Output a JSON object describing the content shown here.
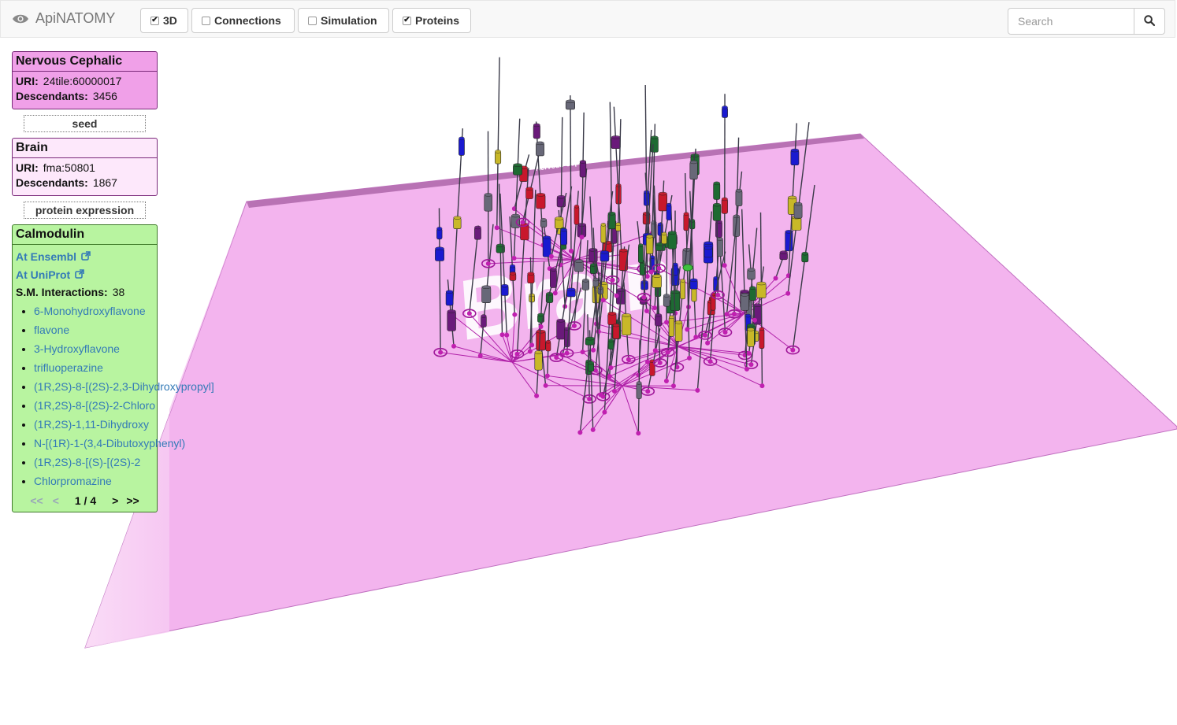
{
  "app": {
    "brand": "ApiNATOMY"
  },
  "toolbar": {
    "toggles": [
      {
        "label": "3D",
        "checked": true
      },
      {
        "label": "Connections",
        "checked": false
      },
      {
        "label": "Simulation",
        "checked": false
      },
      {
        "label": "Proteins",
        "checked": true
      }
    ],
    "search_placeholder": "Search"
  },
  "panels": {
    "nervous": {
      "title": "Nervous Cephalic",
      "uri_label": "URI:",
      "uri": "24tile:60000017",
      "desc_label": "Descendants:",
      "descendants": "3456"
    },
    "seed_label": "seed",
    "brain": {
      "title": "Brain",
      "uri_label": "URI:",
      "uri": "fma:50801",
      "desc_label": "Descendants:",
      "descendants": "1867"
    },
    "relation_label": "protein expression",
    "calmodulin": {
      "title": "Calmodulin",
      "ensembl": "At Ensembl",
      "uniprot": "At UniProt",
      "sm_label": "S.M. Interactions:",
      "sm_count": "38",
      "items": [
        "6-Monohydroxyflavone",
        "flavone",
        "3-Hydroxyflavone",
        "trifluoperazine",
        "(1R,2S)-8-[(2S)-2,3-Dihydroxypropyl]",
        "(1R,2S)-8-[(2S)-2-Chloro",
        "(1R,2S)-1,11-Dihydroxy",
        "N-[(1R)-1-(3,4-Dibutoxyphenyl)",
        "(1R,2S)-8-[(S)-[(2S)-2",
        "Chlorpromazine"
      ],
      "pager": {
        "first": "<<",
        "prev": "<",
        "page": "1 / 4",
        "next": ">",
        "last": ">>"
      }
    }
  },
  "scene": {
    "plane_label": "Brain",
    "top_label": "Nervous Cephalic",
    "colors": {
      "plane": "#f3b4ee",
      "edge": "#a0309a",
      "node": "#c020b0"
    }
  }
}
